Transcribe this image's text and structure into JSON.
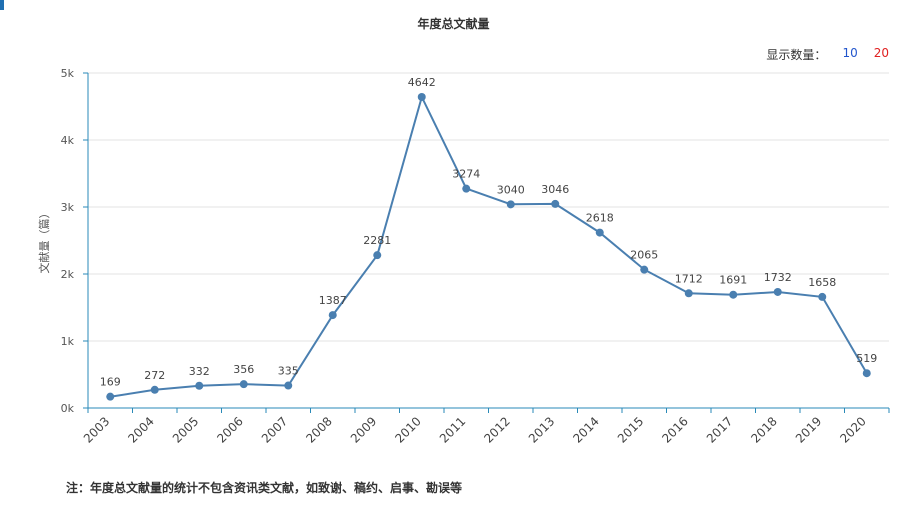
{
  "title": "年度总文献量",
  "count_selector": {
    "label": "显示数量：",
    "options": [
      "10",
      "20"
    ],
    "option_colors": [
      "#2255cc",
      "#e02020"
    ]
  },
  "footnote": "注：年度总文献量的统计不包含资讯类文献，如致谢、稿约、启事、勘误等",
  "chart_data": {
    "type": "line",
    "x": [
      "2003",
      "2004",
      "2005",
      "2006",
      "2007",
      "2008",
      "2009",
      "2010",
      "2011",
      "2012",
      "2013",
      "2014",
      "2015",
      "2016",
      "2017",
      "2018",
      "2019",
      "2020"
    ],
    "series": [
      {
        "values": [
          169,
          272,
          332,
          356,
          335,
          1387,
          2281,
          4642,
          3274,
          3040,
          3046,
          2618,
          2065,
          1712,
          1691,
          1732,
          1658,
          519
        ]
      }
    ],
    "title": "年度总文献量",
    "xlabel": "",
    "ylabel": "文献量（篇）",
    "ylim": [
      0,
      5000
    ],
    "yticks": [
      0,
      1000,
      2000,
      3000,
      4000,
      5000
    ],
    "ytick_labels": [
      "0k",
      "1k",
      "2k",
      "3k",
      "4k",
      "5k"
    ],
    "grid": true,
    "line_color": "#4a7fb0",
    "axis_color": "#2a8ab8"
  }
}
